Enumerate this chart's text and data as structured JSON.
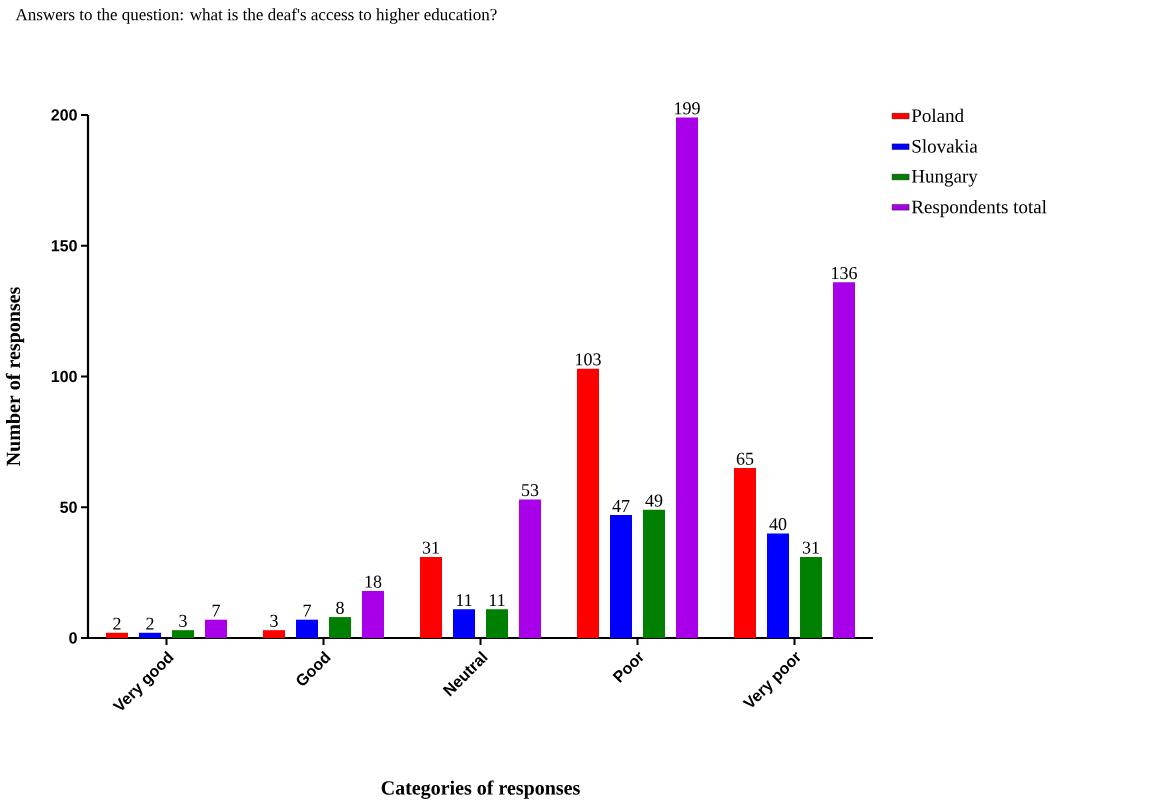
{
  "chart_data": {
    "type": "bar",
    "title": "Answers to the question: what is the deaf's access to higher education?",
    "xlabel": "Categories of responses",
    "ylabel": "Number of responses",
    "categories": [
      "Very good",
      "Good",
      "Neutral",
      "Poor",
      "Very poor"
    ],
    "series": [
      {
        "name": "Poland",
        "color": "#ff0000",
        "values": [
          2,
          3,
          31,
          103,
          65
        ]
      },
      {
        "name": "Slovakia",
        "color": "#0000ff",
        "values": [
          2,
          7,
          11,
          47,
          40
        ]
      },
      {
        "name": "Hungary",
        "color": "#008000",
        "values": [
          3,
          8,
          11,
          49,
          31
        ]
      },
      {
        "name": "Respondents total",
        "color": "#a800e8",
        "values": [
          7,
          18,
          53,
          199,
          136
        ]
      }
    ],
    "ylim": [
      0,
      200
    ],
    "yticks": [
      0,
      50,
      100,
      150,
      200
    ],
    "data_labels": true,
    "legend": "top right"
  }
}
